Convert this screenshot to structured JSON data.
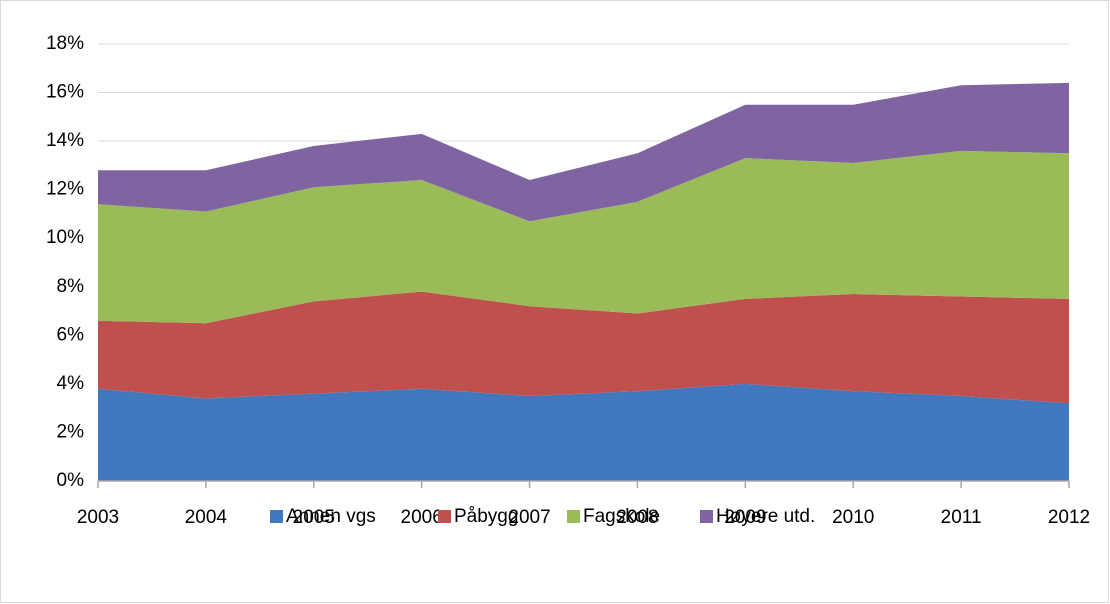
{
  "chart_data": {
    "type": "stacked_area",
    "categories": [
      "2003",
      "2004",
      "2005",
      "2006",
      "2007",
      "2008",
      "2009",
      "2010",
      "2011",
      "2012"
    ],
    "series": [
      {
        "name": "Annen vgs",
        "color": "#4178be",
        "values": [
          3.8,
          3.4,
          3.6,
          3.8,
          3.5,
          3.7,
          4.0,
          3.7,
          3.5,
          3.2
        ]
      },
      {
        "name": "Påbygg",
        "color": "#c0504d",
        "values": [
          2.8,
          3.1,
          3.8,
          4.0,
          3.7,
          3.2,
          3.5,
          4.0,
          4.1,
          4.3
        ]
      },
      {
        "name": "Fagskole",
        "color": "#9bbb59",
        "values": [
          4.8,
          4.6,
          4.7,
          4.6,
          3.5,
          4.6,
          5.8,
          5.4,
          6.0,
          6.0
        ]
      },
      {
        "name": "Høyere utd.",
        "color": "#8064a2",
        "values": [
          1.4,
          1.7,
          1.7,
          1.9,
          1.7,
          2.0,
          2.2,
          2.4,
          2.7,
          2.9
        ]
      }
    ],
    "ylim": [
      0,
      18
    ],
    "yticks": [
      {
        "value": 0,
        "label": "0%"
      },
      {
        "value": 2,
        "label": "2%"
      },
      {
        "value": 4,
        "label": "4%"
      },
      {
        "value": 6,
        "label": "6%"
      },
      {
        "value": 8,
        "label": "8%"
      },
      {
        "value": 10,
        "label": "10%"
      },
      {
        "value": 12,
        "label": "12%"
      },
      {
        "value": 14,
        "label": "14%"
      },
      {
        "value": 16,
        "label": "16%"
      },
      {
        "value": 18,
        "label": "18%"
      }
    ],
    "grid": true,
    "legend": "bottom"
  }
}
